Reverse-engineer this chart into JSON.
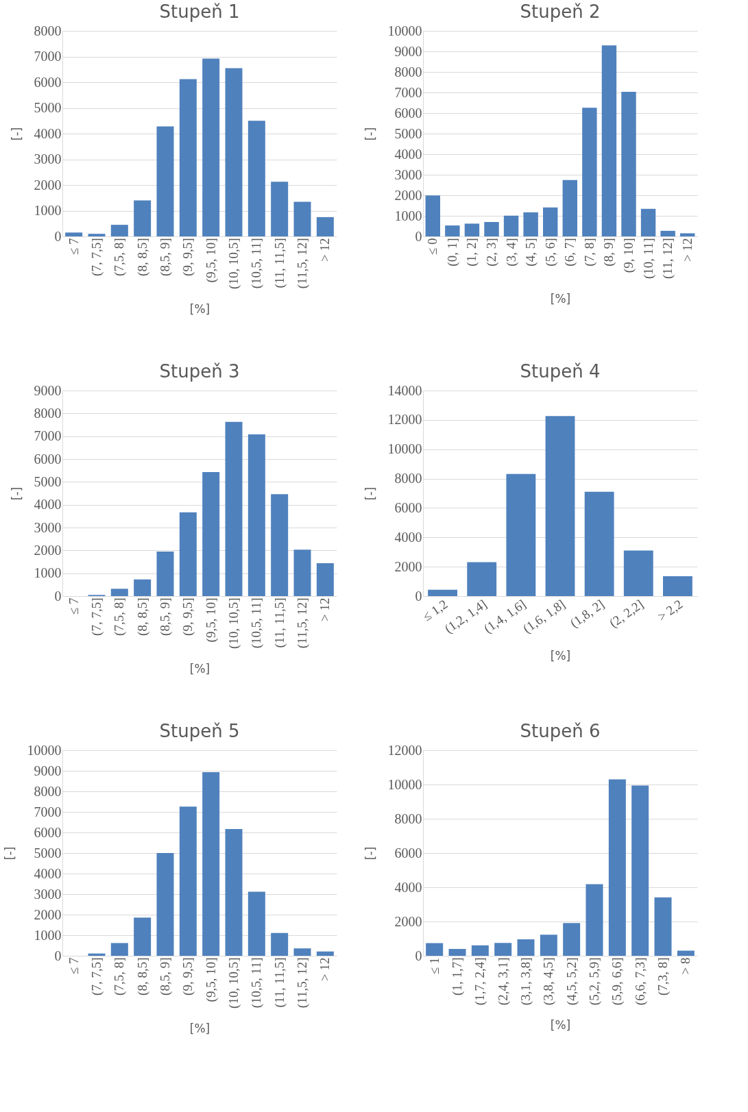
{
  "chart_data": [
    {
      "type": "bar",
      "title": "Stupeň 1",
      "xlabel": "[%]",
      "ylabel": "[-]",
      "color": "#4f81bd",
      "grid": "y",
      "ylim": [
        0,
        8000
      ],
      "yticks": [
        0,
        1000,
        2000,
        3000,
        4000,
        5000,
        6000,
        7000,
        8000
      ],
      "categories": [
        "≤ 7",
        "(7, 7,5]",
        "(7,5, 8]",
        "(8, 8,5]",
        "(8,5, 9]",
        "(9, 9,5]",
        "(9,5, 10]",
        "(10, 10,5]",
        "(10,5, 11]",
        "(11, 11,5]",
        "(11,5, 12]",
        "> 12"
      ],
      "values": [
        150,
        100,
        450,
        1400,
        4280,
        6120,
        6920,
        6550,
        4500,
        2130,
        1350,
        750
      ]
    },
    {
      "type": "bar",
      "title": "Stupeň 2",
      "xlabel": "[%]",
      "ylabel": "[-]",
      "color": "#4f81bd",
      "grid": "y",
      "ylim": [
        0,
        10000
      ],
      "yticks": [
        0,
        1000,
        2000,
        3000,
        4000,
        5000,
        6000,
        7000,
        8000,
        9000,
        10000
      ],
      "categories": [
        "≤ 0",
        "(0, 1]",
        "(1, 2]",
        "(2, 3]",
        "(3, 4]",
        "(4, 5]",
        "(5, 6]",
        "(6, 7]",
        "(7, 8]",
        "(8, 9]",
        "(9, 10]",
        "(10, 11]",
        "(11, 12]",
        "> 12"
      ],
      "values": [
        1990,
        530,
        620,
        700,
        1010,
        1170,
        1410,
        2740,
        6260,
        9290,
        7030,
        1340,
        270,
        150
      ]
    },
    {
      "type": "bar",
      "title": "Stupeň 3",
      "xlabel": "[%]",
      "ylabel": "[-]",
      "color": "#4f81bd",
      "grid": "y",
      "ylim": [
        0,
        9000
      ],
      "yticks": [
        0,
        1000,
        2000,
        3000,
        4000,
        5000,
        6000,
        7000,
        8000,
        9000
      ],
      "categories": [
        "≤ 7",
        "(7, 7,5]",
        "(7,5, 8]",
        "(8, 8,5]",
        "(8,5, 9]",
        "(9, 9,5]",
        "(9,5, 10]",
        "(10, 10,5]",
        "(10,5, 11]",
        "(11, 11,5]",
        "(11,5, 12]",
        "> 12"
      ],
      "values": [
        0,
        50,
        320,
        730,
        1950,
        3670,
        5430,
        7630,
        7080,
        4460,
        2030,
        1440
      ]
    },
    {
      "type": "bar",
      "title": "Stupeň 4",
      "xlabel": "[%]",
      "ylabel": "[-]",
      "color": "#4f81bd",
      "grid": "y",
      "ylim": [
        0,
        14000
      ],
      "yticks": [
        0,
        2000,
        4000,
        6000,
        8000,
        10000,
        12000,
        14000
      ],
      "categories": [
        "≤ 1,2",
        "(1,2, 1,4]",
        "(1,4, 1,6]",
        "(1,6, 1,8]",
        "(1,8, 2]",
        "(2, 2,2]",
        "> 2,2"
      ],
      "values": [
        430,
        2310,
        8320,
        12260,
        7110,
        3100,
        1350
      ]
    },
    {
      "type": "bar",
      "title": "Stupeň 5",
      "xlabel": "[%]",
      "ylabel": "[-]",
      "color": "#4f81bd",
      "grid": "y",
      "ylim": [
        0,
        10000
      ],
      "yticks": [
        0,
        1000,
        2000,
        3000,
        4000,
        5000,
        6000,
        7000,
        8000,
        9000,
        10000
      ],
      "categories": [
        "≤ 7",
        "(7, 7,5]",
        "(7,5, 8]",
        "(8, 8,5]",
        "(8,5, 9]",
        "(9, 9,5]",
        "(9,5, 10]",
        "(10, 10,5]",
        "(10,5, 11]",
        "(11, 11,5]",
        "(11,5, 12]",
        "> 12"
      ],
      "values": [
        0,
        110,
        620,
        1860,
        5000,
        7260,
        8930,
        6170,
        3120,
        1110,
        360,
        210
      ]
    },
    {
      "type": "bar",
      "title": "Stupeň 6",
      "xlabel": "[%]",
      "ylabel": "[-]",
      "color": "#4f81bd",
      "grid": "y",
      "ylim": [
        0,
        12000
      ],
      "yticks": [
        0,
        2000,
        4000,
        6000,
        8000,
        10000,
        12000
      ],
      "categories": [
        "≤ 1",
        "(1, 1,7]",
        "(1,7, 2,4]",
        "(2,4, 3,1]",
        "(3,1, 3,8]",
        "(3,8, 4,5]",
        "(4,5, 5,2]",
        "(5,2, 5,9]",
        "(5,9, 6,6]",
        "(6,6, 7,3]",
        "(7,3, 8]",
        "> 8"
      ],
      "values": [
        740,
        400,
        610,
        750,
        960,
        1230,
        1910,
        4180,
        10300,
        9940,
        3410,
        300
      ]
    }
  ]
}
